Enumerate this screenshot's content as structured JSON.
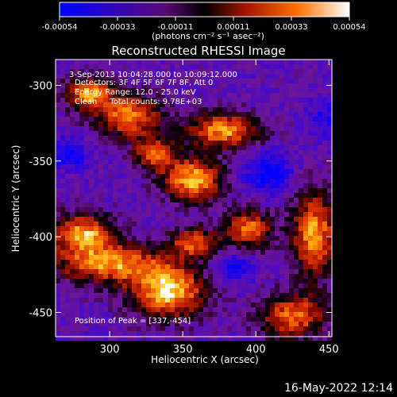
{
  "chart_data": {
    "type": "heatmap",
    "title": "Reconstructed RHESSI Image",
    "xlabel": "Heliocentric X (arcsec)",
    "ylabel": "Heliocentric Y (arcsec)",
    "xlim": [
      263,
      452
    ],
    "ylim": [
      -466,
      -283
    ],
    "x_ticks": [
      300,
      350,
      400,
      450
    ],
    "y_ticks": [
      -300,
      -350,
      -400,
      -450
    ],
    "colorbar": {
      "ticks": [
        "-0.00054",
        "-0.00033",
        "-0.00011",
        "0.00011",
        "0.00033",
        "0.00054"
      ],
      "range": [
        -0.00054,
        0.00054
      ],
      "unit_label": "(photons cm⁻² s⁻¹ asec⁻²)"
    },
    "annotations": [
      "3-Sep-2013 10:04:28.000 to 10:09:12.000",
      "Detectors: 3F 4F 5F 6F 7F 8F, Att 0",
      "Energy Range: 12.0 - 25.0 keV",
      "Clean     Total counts: 9.78E+03"
    ],
    "peak_label": "Position of Peak = [337,-454]",
    "peak": {
      "x": 337,
      "y": -454
    },
    "bright_regions": [
      {
        "x": 340,
        "y": -436,
        "sx": 18,
        "sy": 12,
        "amp": 0.95
      },
      {
        "x": 300,
        "y": -418,
        "sx": 26,
        "sy": 9,
        "amp": 0.75
      },
      {
        "x": 282,
        "y": -398,
        "sx": 15,
        "sy": 9,
        "amp": 0.85
      },
      {
        "x": 357,
        "y": -362,
        "sx": 14,
        "sy": 10,
        "amp": 0.9
      },
      {
        "x": 378,
        "y": -330,
        "sx": 18,
        "sy": 8,
        "amp": 0.8
      },
      {
        "x": 312,
        "y": -320,
        "sx": 16,
        "sy": 10,
        "amp": 0.75
      },
      {
        "x": 286,
        "y": -305,
        "sx": 11,
        "sy": 7,
        "amp": 0.8
      },
      {
        "x": 395,
        "y": -395,
        "sx": 11,
        "sy": 9,
        "amp": 0.7
      },
      {
        "x": 440,
        "y": -398,
        "sx": 11,
        "sy": 20,
        "amp": 0.8
      },
      {
        "x": 425,
        "y": -452,
        "sx": 16,
        "sy": 10,
        "amp": 0.7
      },
      {
        "x": 358,
        "y": -404,
        "sx": 12,
        "sy": 7,
        "amp": 0.6
      },
      {
        "x": 330,
        "y": -345,
        "sx": 10,
        "sy": 8,
        "amp": 0.55
      }
    ],
    "dark_regions": [
      {
        "x": 272,
        "y": -345,
        "sx": 9,
        "sy": 7,
        "amp": 0.6
      },
      {
        "x": 408,
        "y": -358,
        "sx": 12,
        "sy": 10,
        "amp": 0.6
      },
      {
        "x": 385,
        "y": -420,
        "sx": 10,
        "sy": 8,
        "amp": 0.5
      },
      {
        "x": 448,
        "y": -322,
        "sx": 8,
        "sy": 8,
        "amp": 0.4
      }
    ]
  },
  "timestamp": "16-May-2022 12:14"
}
